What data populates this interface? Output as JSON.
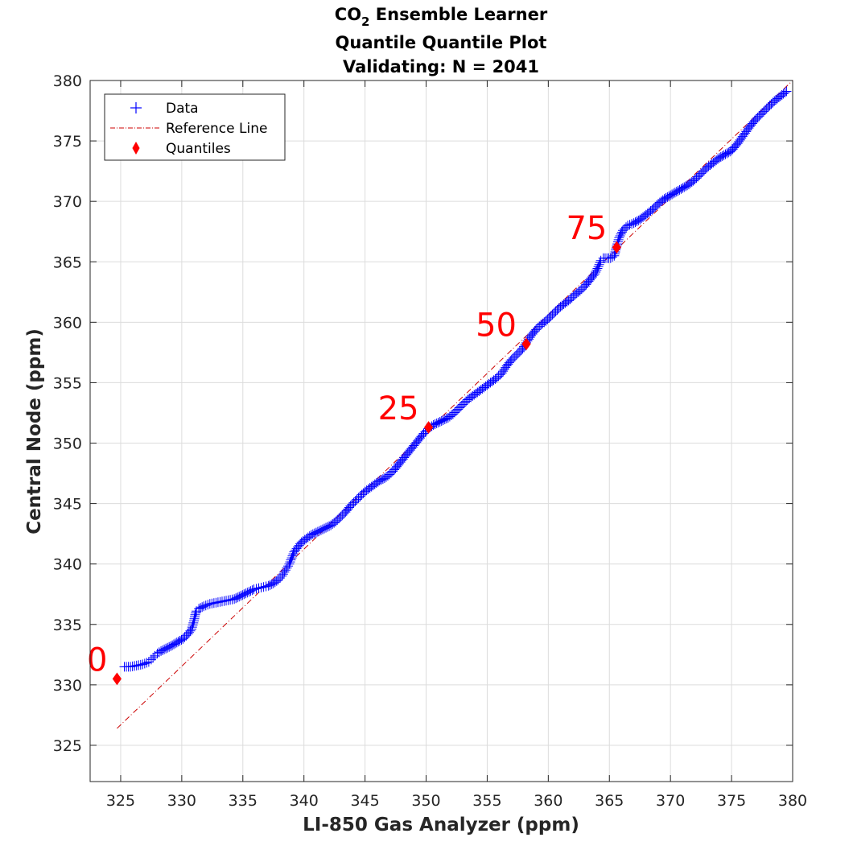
{
  "chart_data": {
    "type": "scatter",
    "title_parts": {
      "before_sub": "CO",
      "subscript": "2",
      "after_sub": " Ensemble Learner"
    },
    "subtitle": "Quantile Quantile Plot",
    "subtitle2": "Validating: N = 2041",
    "xlabel": "LI-850 Gas Analyzer (ppm)",
    "ylabel": "Central Node (ppm)",
    "xlim": [
      322.5,
      380
    ],
    "ylim": [
      322,
      380
    ],
    "xticks": [
      325,
      330,
      335,
      340,
      345,
      350,
      355,
      360,
      365,
      370,
      375,
      380
    ],
    "yticks": [
      325,
      330,
      335,
      340,
      345,
      350,
      355,
      360,
      365,
      370,
      375,
      380
    ],
    "grid": true,
    "legend_position": "top-left",
    "legend": [
      {
        "label": "Data",
        "marker": "plus",
        "color": "#0000ff"
      },
      {
        "label": "Reference Line",
        "marker": "dashdot",
        "color": "#cc0000"
      },
      {
        "label": "Quantiles",
        "marker": "diamond",
        "color": "#ff0000"
      }
    ],
    "series": [
      {
        "name": "Data",
        "color": "#0000ff",
        "marker": "plus",
        "x": [
          325.3,
          325.8,
          326.3,
          326.8,
          327.3,
          327.5,
          327.8,
          328.0,
          328.3,
          328.7,
          329.1,
          329.6,
          330.1,
          330.5,
          330.8,
          331.0,
          331.1,
          331.2,
          331.4,
          331.8,
          332.3,
          332.8,
          333.3,
          333.8,
          334.3,
          334.7,
          335.1,
          335.5,
          335.9,
          336.3,
          336.7,
          337.1,
          337.5,
          337.9,
          338.2,
          338.5,
          338.8,
          339.0,
          339.2,
          339.5,
          339.8,
          340.2,
          340.6,
          341.0,
          341.4,
          341.8,
          342.2,
          342.6,
          343.0,
          343.4,
          343.8,
          344.2,
          344.6,
          345.0,
          345.4,
          345.8,
          346.2,
          346.6,
          347.0,
          347.4,
          347.8,
          348.2,
          348.6,
          349.0,
          349.4,
          349.8,
          350.2,
          350.6,
          351.0,
          351.4,
          351.8,
          352.2,
          352.6,
          353.0,
          353.4,
          353.8,
          354.2,
          354.6,
          355.0,
          355.4,
          355.8,
          356.2,
          356.6,
          357.0,
          357.4,
          357.8,
          358.2,
          358.6,
          359.0,
          359.4,
          359.8,
          360.2,
          360.6,
          361.0,
          361.4,
          361.8,
          362.2,
          362.6,
          363.0,
          363.4,
          363.8,
          364.1,
          364.3,
          364.5,
          364.8,
          365.1,
          365.4,
          365.6,
          365.8,
          366.1,
          366.5,
          367.0,
          367.5,
          368.0,
          368.5,
          369.0,
          369.5,
          370.0,
          370.5,
          371.0,
          371.5,
          372.0,
          372.5,
          373.0,
          373.5,
          374.0,
          374.5,
          375.0,
          375.5,
          376.0,
          376.5,
          377.0,
          377.5,
          378.0,
          378.5,
          379.0,
          379.5
        ],
        "y": [
          331.5,
          331.5,
          331.6,
          331.7,
          331.9,
          332.1,
          332.4,
          332.6,
          332.8,
          333.0,
          333.2,
          333.5,
          333.8,
          334.2,
          334.6,
          335.3,
          335.8,
          336.1,
          336.3,
          336.5,
          336.7,
          336.8,
          336.9,
          337.0,
          337.1,
          337.3,
          337.5,
          337.7,
          337.9,
          338.0,
          338.1,
          338.2,
          338.4,
          338.7,
          339.0,
          339.5,
          340.0,
          340.5,
          341.0,
          341.4,
          341.8,
          342.1,
          342.4,
          342.6,
          342.8,
          343.0,
          343.2,
          343.5,
          343.9,
          344.3,
          344.8,
          345.2,
          345.6,
          346.0,
          346.3,
          346.6,
          346.9,
          347.1,
          347.4,
          347.8,
          348.3,
          348.8,
          349.3,
          349.8,
          350.3,
          350.8,
          351.2,
          351.5,
          351.7,
          351.9,
          352.1,
          352.4,
          352.8,
          353.2,
          353.6,
          353.9,
          354.2,
          354.5,
          354.8,
          355.1,
          355.4,
          355.8,
          356.4,
          356.9,
          357.3,
          357.7,
          358.3,
          358.9,
          359.4,
          359.8,
          360.1,
          360.5,
          360.9,
          361.3,
          361.6,
          361.9,
          362.3,
          362.6,
          363.0,
          363.5,
          364.0,
          364.6,
          365.1,
          365.3,
          365.3,
          365.3,
          365.5,
          366.3,
          367.0,
          367.6,
          368.0,
          368.2,
          368.5,
          368.9,
          369.3,
          369.8,
          370.2,
          370.5,
          370.8,
          371.1,
          371.4,
          371.8,
          372.3,
          372.8,
          373.2,
          373.6,
          373.9,
          374.2,
          374.8,
          375.5,
          376.2,
          376.8,
          377.3,
          377.8,
          378.3,
          378.7,
          379.1
        ]
      },
      {
        "name": "Reference Line",
        "color": "#cc0000",
        "style": "dashdot",
        "x": [
          324.7,
          380
        ],
        "y": [
          326.4,
          380
        ]
      },
      {
        "name": "Quantiles",
        "color": "#ff0000",
        "marker": "diamond",
        "x": [
          324.7,
          350.2,
          358.2,
          365.6
        ],
        "y": [
          330.5,
          351.3,
          358.2,
          366.2
        ],
        "labels": [
          "0",
          "25",
          "50",
          "75"
        ]
      }
    ]
  }
}
